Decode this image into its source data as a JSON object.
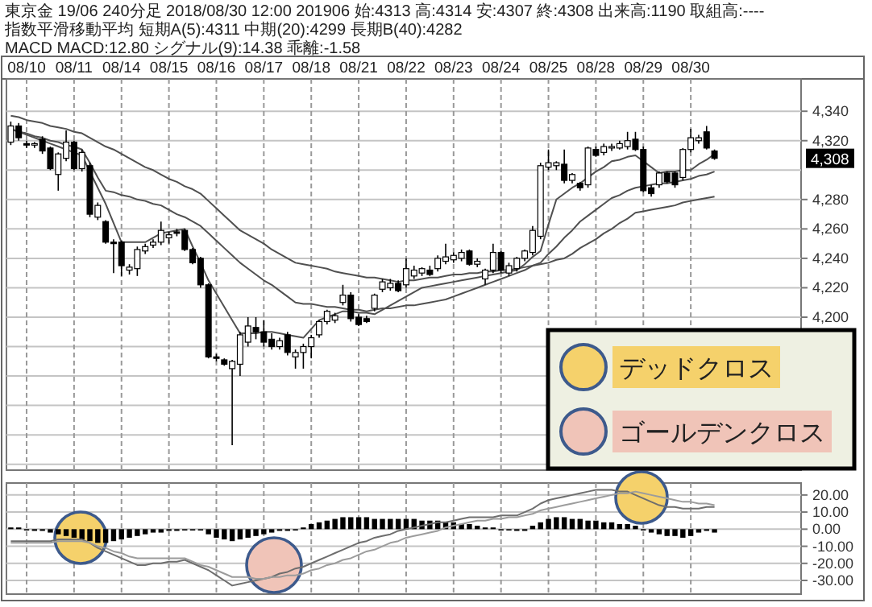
{
  "chart_data": [
    {
      "type": "candlestick",
      "title": "東京金 19/06 240分足 2018/08/30 12:00 201906 始:4313 高:4314 安:4307 終:4308 出来高:1190 取組高:----",
      "subtitle": "指数平滑移動平均 短期A(5):4311 中期(20):4299 長期B(40):4282",
      "annotations": [
        "MACD MACD:12.80 シグナル(9):14.38 乖離:-1.58",
        "4,308"
      ],
      "categories": [
        null,
        null,
        "08/10",
        null,
        null,
        null,
        null,
        null,
        "08/11",
        null,
        null,
        null,
        null,
        null,
        "08/14",
        null,
        null,
        null,
        null,
        null,
        "08/15",
        null,
        null,
        null,
        null,
        null,
        "08/16",
        null,
        null,
        null,
        null,
        null,
        "08/17",
        null,
        null,
        null,
        null,
        null,
        "08/18",
        null,
        null,
        null,
        null,
        null,
        "08/21",
        null,
        null,
        null,
        null,
        null,
        "08/22",
        null,
        null,
        null,
        null,
        null,
        "08/23",
        null,
        null,
        null,
        null,
        null,
        "08/24",
        null,
        null,
        null,
        null,
        null,
        "08/25",
        null,
        null,
        null,
        null,
        null,
        "08/28",
        null,
        null,
        null,
        null,
        null,
        "08/29",
        null,
        null,
        null,
        null,
        null,
        "08/30",
        null,
        null,
        null
      ],
      "ohlc": [
        [
          4319,
          4333,
          4317,
          4330
        ],
        [
          4330,
          4332,
          4320,
          4322
        ],
        [
          4318,
          4320,
          4315,
          4317
        ],
        [
          4317,
          4319,
          4315,
          4318
        ],
        [
          4321,
          4323,
          4311,
          4313
        ],
        [
          4315,
          4316,
          4300,
          4301
        ],
        [
          4297,
          4312,
          4286,
          4311
        ],
        [
          4308,
          4327,
          4306,
          4319
        ],
        [
          4319,
          4320,
          4300,
          4301
        ],
        [
          4301,
          4314,
          4299,
          4312
        ],
        [
          4303,
          4305,
          4268,
          4270
        ],
        [
          4268,
          4278,
          4266,
          4276
        ],
        [
          4265,
          4266,
          4250,
          4251
        ],
        [
          4251,
          4253,
          4230,
          4250
        ],
        [
          4251,
          4252,
          4228,
          4235
        ],
        [
          4232,
          4236,
          4229,
          4234
        ],
        [
          4233,
          4248,
          4228,
          4246
        ],
        [
          4245,
          4250,
          4243,
          4248
        ],
        [
          4249,
          4253,
          4247,
          4251
        ],
        [
          4251,
          4265,
          4249,
          4259
        ],
        [
          4254,
          4258,
          4250,
          4256
        ],
        [
          4258,
          4260,
          4255,
          4257
        ],
        [
          4259,
          4260,
          4245,
          4246
        ],
        [
          4246,
          4247,
          4236,
          4237
        ],
        [
          4240,
          4241,
          4220,
          4222
        ],
        [
          4222,
          4223,
          4172,
          4173
        ],
        [
          4173,
          4175,
          4170,
          4172
        ],
        [
          4171,
          4172,
          4167,
          4168
        ],
        [
          4165,
          4171,
          4113,
          4170
        ],
        [
          4168,
          4190,
          4160,
          4188
        ],
        [
          4183,
          4200,
          4180,
          4194
        ],
        [
          4193,
          4200,
          4185,
          4190
        ],
        [
          4190,
          4198,
          4180,
          4183
        ],
        [
          4185,
          4189,
          4178,
          4180
        ],
        [
          4180,
          4186,
          4178,
          4184
        ],
        [
          4188,
          4190,
          4174,
          4176
        ],
        [
          4173,
          4178,
          4165,
          4176
        ],
        [
          4176,
          4182,
          4165,
          4180
        ],
        [
          4180,
          4188,
          4172,
          4186
        ],
        [
          4188,
          4198,
          4186,
          4197
        ],
        [
          4197,
          4205,
          4195,
          4204
        ],
        [
          4198,
          4203,
          4196,
          4201
        ],
        [
          4210,
          4222,
          4208,
          4215
        ],
        [
          4215,
          4217,
          4197,
          4199
        ],
        [
          4200,
          4202,
          4194,
          4195
        ],
        [
          4199,
          4201,
          4196,
          4197
        ],
        [
          4206,
          4216,
          4204,
          4215
        ],
        [
          4219,
          4226,
          4217,
          4224
        ],
        [
          4220,
          4226,
          4218,
          4223
        ],
        [
          4223,
          4225,
          4217,
          4218
        ],
        [
          4222,
          4240,
          4220,
          4233
        ],
        [
          4228,
          4235,
          4226,
          4232
        ],
        [
          4230,
          4234,
          4228,
          4233
        ],
        [
          4232,
          4235,
          4228,
          4229
        ],
        [
          4233,
          4242,
          4231,
          4240
        ],
        [
          4238,
          4250,
          4236,
          4241
        ],
        [
          4239,
          4244,
          4237,
          4242
        ],
        [
          4240,
          4246,
          4238,
          4244
        ],
        [
          4245,
          4246,
          4235,
          4236
        ],
        [
          4236,
          4240,
          4234,
          4238
        ],
        [
          4226,
          4233,
          4222,
          4232
        ],
        [
          4232,
          4250,
          4230,
          4244
        ],
        [
          4244,
          4245,
          4230,
          4232
        ],
        [
          4230,
          4237,
          4228,
          4235
        ],
        [
          4233,
          4241,
          4231,
          4240
        ],
        [
          4240,
          4246,
          4238,
          4245
        ],
        [
          4244,
          4262,
          4242,
          4259
        ],
        [
          4255,
          4305,
          4253,
          4303
        ],
        [
          4302,
          4314,
          4300,
          4305
        ],
        [
          4303,
          4306,
          4300,
          4305
        ],
        [
          4304,
          4314,
          4291,
          4293
        ],
        [
          4293,
          4298,
          4291,
          4297
        ],
        [
          4291,
          4292,
          4286,
          4288
        ],
        [
          4290,
          4316,
          4288,
          4315
        ],
        [
          4314,
          4316,
          4309,
          4310
        ],
        [
          4312,
          4318,
          4310,
          4316
        ],
        [
          4315,
          4318,
          4313,
          4316
        ],
        [
          4315,
          4320,
          4314,
          4318
        ],
        [
          4316,
          4326,
          4314,
          4320
        ],
        [
          4321,
          4326,
          4313,
          4314
        ],
        [
          4314,
          4316,
          4285,
          4286
        ],
        [
          4288,
          4290,
          4282,
          4284
        ],
        [
          4290,
          4299,
          4288,
          4298
        ],
        [
          4298,
          4299,
          4291,
          4292
        ],
        [
          4298,
          4299,
          4288,
          4290
        ],
        [
          4295,
          4315,
          4293,
          4314
        ],
        [
          4314,
          4328,
          4312,
          4322
        ],
        [
          4320,
          4324,
          4318,
          4322
        ],
        [
          4326,
          4330,
          4314,
          4315
        ],
        [
          4313,
          4314,
          4307,
          4308
        ]
      ],
      "series": [
        {
          "type": "line",
          "color": "#505050",
          "values": [
            4328,
            4326,
            4324,
            4322,
            4320,
            4318,
            4316,
            4314,
            4312,
            4310,
            4299,
            4288,
            4277,
            4264,
            4251,
            4251,
            4251,
            4251,
            4254,
            4257,
            4258,
            4259,
            4260,
            4248,
            4237,
            4225,
            4216,
            4207,
            4198,
            4189,
            4189,
            4189,
            4190,
            4190,
            4189,
            4188,
            4187,
            4186,
            4192,
            4198,
            4200,
            4202,
            4204,
            4204,
            4203,
            4203,
            4202,
            4205,
            4208,
            4211,
            4214,
            4217,
            4220,
            4221,
            4222,
            4223,
            4224,
            4225,
            4226,
            4227,
            4228,
            4229,
            4230,
            4231,
            4232,
            4236,
            4241,
            4245,
            4263,
            4280,
            4284,
            4288,
            4291,
            4295,
            4299,
            4302,
            4306,
            4307,
            4309,
            4310,
            4306,
            4302,
            4298,
            4299,
            4299,
            4300,
            4300,
            4304,
            4307,
            4311
          ]
        },
        {
          "type": "line",
          "color": "#505050",
          "values": [
            4328,
            4326,
            4325,
            4323,
            4322,
            4320,
            4319,
            4317,
            4316,
            4314,
            4305,
            4295,
            4286,
            4285,
            4283,
            4282,
            4280,
            4279,
            4277,
            4276,
            4273,
            4270,
            4268,
            4265,
            4262,
            4257,
            4252,
            4247,
            4242,
            4237,
            4233,
            4229,
            4225,
            4222,
            4218,
            4214,
            4210,
            4209,
            4209,
            4208,
            4207,
            4207,
            4206,
            4205,
            4205,
            4204,
            4205,
            4206,
            4206,
            4207,
            4208,
            4208,
            4209,
            4210,
            4211,
            4212,
            4214,
            4216,
            4218,
            4220,
            4222,
            4224,
            4226,
            4228,
            4230,
            4232,
            4235,
            4237,
            4243,
            4248,
            4254,
            4259,
            4265,
            4269,
            4273,
            4277,
            4281,
            4283,
            4286,
            4288,
            4289,
            4290,
            4291,
            4291,
            4292,
            4293,
            4294,
            4296,
            4297,
            4299
          ]
        },
        {
          "type": "line",
          "color": "#505050",
          "values": [
            4337,
            4336,
            4334,
            4333,
            4332,
            4330,
            4329,
            4328,
            4326,
            4325,
            4322,
            4319,
            4316,
            4314,
            4311,
            4308,
            4305,
            4302,
            4300,
            4297,
            4294,
            4292,
            4289,
            4287,
            4284,
            4279,
            4274,
            4269,
            4264,
            4259,
            4256,
            4253,
            4250,
            4246,
            4243,
            4240,
            4237,
            4236,
            4235,
            4234,
            4233,
            4231,
            4230,
            4229,
            4228,
            4227,
            4227,
            4226,
            4225,
            4224,
            4225,
            4225,
            4226,
            4227,
            4227,
            4228,
            4229,
            4229,
            4230,
            4230,
            4231,
            4231,
            4232,
            4232,
            4233,
            4234,
            4235,
            4236,
            4237,
            4239,
            4240,
            4243,
            4247,
            4250,
            4253,
            4257,
            4260,
            4264,
            4267,
            4271,
            4272,
            4273,
            4274,
            4275,
            4276,
            4278,
            4279,
            4280,
            4281,
            4282
          ]
        }
      ],
      "ylim": [
        4096,
        4362
      ],
      "yticks": [
        {
          "value": 4100,
          "label": null
        },
        {
          "value": 4120,
          "label": null
        },
        {
          "value": 4140,
          "label": null
        },
        {
          "value": 4160,
          "label": null
        },
        {
          "value": 4180,
          "label": null
        },
        {
          "value": 4200,
          "label": "4,200"
        },
        {
          "value": 4220,
          "label": "4,220"
        },
        {
          "value": 4240,
          "label": "4,240"
        },
        {
          "value": 4260,
          "label": "4,260"
        },
        {
          "value": 4280,
          "label": "4,280"
        },
        {
          "value": 4300,
          "label": null
        },
        {
          "value": 4320,
          "label": "4,320"
        },
        {
          "value": 4340,
          "label": "4,340"
        }
      ],
      "grid": true
    },
    {
      "type": "bar",
      "categories": [
        null,
        null,
        null,
        null,
        null,
        null,
        null,
        null,
        null,
        null,
        null,
        null,
        null,
        null,
        null,
        null,
        null,
        null,
        null,
        null,
        null,
        null,
        null,
        null,
        null,
        null,
        null,
        null,
        null,
        null,
        null,
        null,
        null,
        null,
        null,
        null,
        null,
        null,
        null,
        null,
        null,
        null,
        null,
        null,
        null,
        null,
        null,
        null,
        null,
        null,
        null,
        null,
        null,
        null,
        null,
        null,
        null,
        null,
        null,
        null,
        null,
        null,
        null,
        null,
        null,
        null,
        null,
        null,
        null,
        null,
        null,
        null,
        null,
        null,
        null,
        null,
        null,
        null,
        null,
        null,
        null,
        null,
        null,
        null,
        null,
        null,
        null,
        null,
        null,
        null
      ],
      "series": [
        {
          "type": "bar",
          "color": "#000000",
          "values": [
            1,
            1,
            0,
            -1,
            -1,
            -2,
            -3,
            -4,
            -5,
            -6,
            -7,
            -8,
            -8,
            -7,
            -6,
            -5,
            -4,
            -3,
            -2,
            -2,
            -1,
            -1,
            0,
            0,
            0,
            -3,
            -5,
            -6,
            -7,
            -6,
            -5,
            -4,
            -3,
            -2,
            -1,
            -1,
            0,
            1,
            3,
            4,
            5,
            6,
            7,
            7,
            7,
            7,
            6,
            6,
            6,
            6,
            6,
            6,
            5,
            5,
            5,
            4,
            4,
            3,
            3,
            2,
            1,
            1,
            0,
            0,
            -1,
            -1,
            2,
            4,
            6,
            7,
            7,
            6,
            6,
            5,
            5,
            4,
            4,
            3,
            3,
            2,
            0,
            -2,
            -3,
            -4,
            -4,
            -5,
            -4,
            -2,
            -1,
            -2
          ]
        },
        {
          "type": "line",
          "color": "#6e6e6e",
          "values": [
            -7,
            -7,
            -7,
            -7,
            -7,
            -7,
            -6,
            -6,
            -6,
            -6,
            -8,
            -11,
            -13,
            -15,
            -17,
            -19,
            -21,
            -21,
            -20,
            -20,
            -19,
            -19,
            -18,
            -20,
            -22,
            -24,
            -27,
            -30,
            -33,
            -32,
            -31,
            -30,
            -29,
            -28,
            -26,
            -25,
            -23,
            -22,
            -20,
            -18,
            -16,
            -14,
            -12,
            -10,
            -8,
            -7,
            -5,
            -4,
            -3,
            -1,
            0,
            1,
            2,
            3,
            4,
            4,
            5,
            6,
            7,
            7,
            7,
            7,
            8,
            8,
            8,
            10,
            12,
            15,
            17,
            18,
            19,
            20,
            21,
            22,
            23,
            23,
            23,
            22,
            22,
            20,
            18,
            16,
            14,
            13,
            13,
            12,
            12,
            12,
            13,
            13
          ]
        },
        {
          "type": "line",
          "color": "#9c9c9c",
          "values": [
            -8,
            -8,
            -8,
            -8,
            -8,
            -8,
            -7,
            -7,
            -7,
            -7,
            -8,
            -10,
            -11,
            -13,
            -14,
            -16,
            -17,
            -17,
            -17,
            -17,
            -17,
            -17,
            -17,
            -19,
            -21,
            -22,
            -24,
            -26,
            -28,
            -28,
            -28,
            -29,
            -29,
            -28,
            -28,
            -27,
            -27,
            -26,
            -24,
            -23,
            -21,
            -20,
            -18,
            -17,
            -15,
            -13,
            -12,
            -10,
            -8,
            -7,
            -5,
            -4,
            -3,
            -2,
            -1,
            1,
            2,
            3,
            4,
            5,
            5,
            6,
            6,
            7,
            7,
            8,
            9,
            11,
            12,
            13,
            14,
            15,
            16,
            17,
            18,
            19,
            20,
            21,
            21,
            22,
            21,
            20,
            19,
            18,
            17,
            16,
            16,
            15,
            15,
            14
          ]
        }
      ],
      "ylim": [
        -38,
        27
      ],
      "yticks": [
        {
          "value": 20,
          "label": "20.00"
        },
        {
          "value": 10,
          "label": "10.00"
        },
        {
          "value": 0,
          "label": "0.00"
        },
        {
          "value": -10,
          "label": "-10.00"
        },
        {
          "value": -20,
          "label": "-20.00"
        },
        {
          "value": -30,
          "label": "-30.00"
        }
      ],
      "grid": true,
      "tick_labels": "y"
    },
    {
      "type": "other",
      "annotations": [
        "デッドクロス",
        "ゴールデンクロス"
      ],
      "colors": [
        "#f5d16b",
        "#f0c4b8"
      ]
    }
  ]
}
